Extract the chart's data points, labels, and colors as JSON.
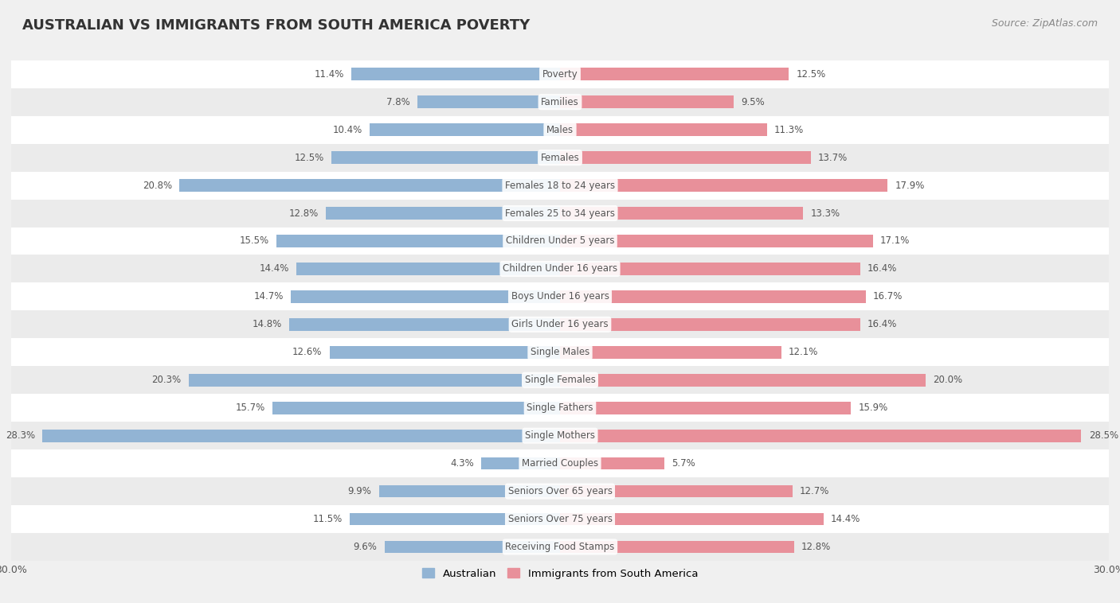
{
  "title": "AUSTRALIAN VS IMMIGRANTS FROM SOUTH AMERICA POVERTY",
  "source": "Source: ZipAtlas.com",
  "categories": [
    "Poverty",
    "Families",
    "Males",
    "Females",
    "Females 18 to 24 years",
    "Females 25 to 34 years",
    "Children Under 5 years",
    "Children Under 16 years",
    "Boys Under 16 years",
    "Girls Under 16 years",
    "Single Males",
    "Single Females",
    "Single Fathers",
    "Single Mothers",
    "Married Couples",
    "Seniors Over 65 years",
    "Seniors Over 75 years",
    "Receiving Food Stamps"
  ],
  "australian": [
    11.4,
    7.8,
    10.4,
    12.5,
    20.8,
    12.8,
    15.5,
    14.4,
    14.7,
    14.8,
    12.6,
    20.3,
    15.7,
    28.3,
    4.3,
    9.9,
    11.5,
    9.6
  ],
  "immigrants": [
    12.5,
    9.5,
    11.3,
    13.7,
    17.9,
    13.3,
    17.1,
    16.4,
    16.7,
    16.4,
    12.1,
    20.0,
    15.9,
    28.5,
    5.7,
    12.7,
    14.4,
    12.8
  ],
  "australian_color": "#92b4d4",
  "immigrant_color": "#e8909a",
  "background_color": "#f0f0f0",
  "row_color_odd": "#ffffff",
  "row_color_even": "#ebebeb",
  "x_max": 30.0,
  "legend_label_australian": "Australian",
  "legend_label_immigrant": "Immigrants from South America",
  "title_fontsize": 13,
  "source_fontsize": 9,
  "label_fontsize": 8.5,
  "value_fontsize": 8.5
}
